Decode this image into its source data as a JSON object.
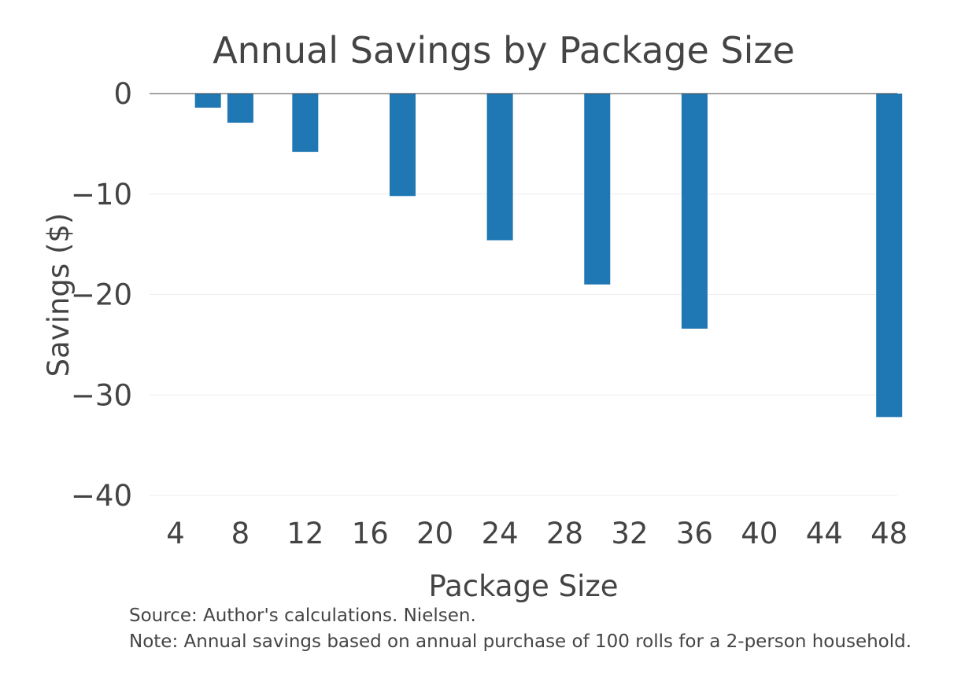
{
  "chart_data": {
    "type": "bar",
    "title": "Annual Savings by Package Size",
    "xlabel": "Package Size",
    "ylabel": "Savings ($)",
    "x_ticks": [
      "4",
      "8",
      "12",
      "16",
      "20",
      "24",
      "28",
      "32",
      "36",
      "40",
      "44",
      "48"
    ],
    "y_ticks": [
      "0",
      "−10",
      "−20",
      "−30",
      "−40"
    ],
    "xlim": [
      2.4,
      48.5
    ],
    "ylim": [
      -40,
      0
    ],
    "grid": true,
    "bar_color": "#1f77b4",
    "series": [
      {
        "x": [
          6,
          8,
          12,
          18,
          24,
          30,
          36,
          48
        ],
        "values": [
          -1.4,
          -2.9,
          -5.8,
          -10.2,
          -14.6,
          -19.0,
          -23.4,
          -32.2
        ]
      }
    ],
    "annotations": [
      "Source: Author's calculations. Nielsen.",
      "Note: Annual savings based on annual purchase of 100 rolls for a 2-person household."
    ]
  }
}
